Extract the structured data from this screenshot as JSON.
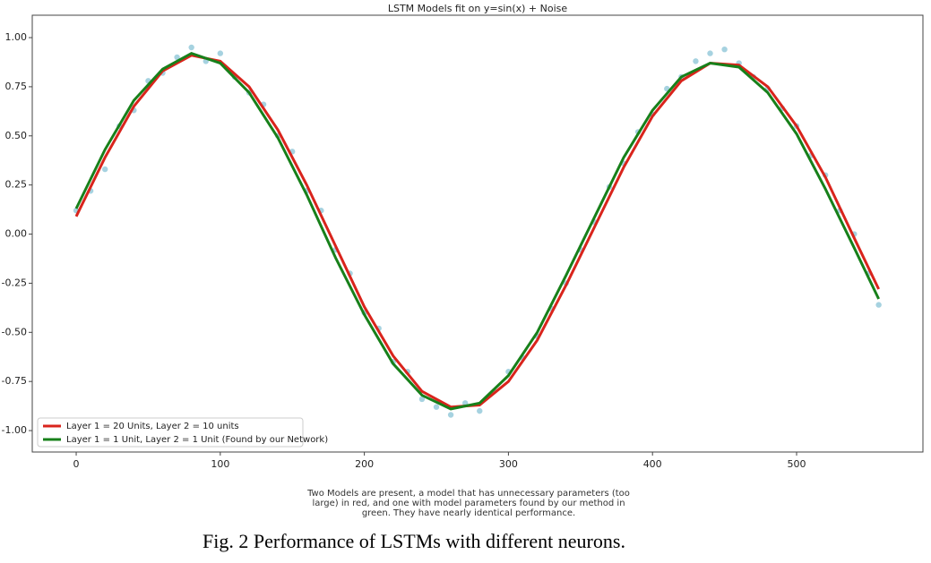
{
  "chart_data": {
    "type": "line",
    "title": "LSTM Models fit on y=sin(x) + Noise",
    "x": [
      0,
      20,
      40,
      60,
      80,
      100,
      120,
      140,
      160,
      180,
      200,
      220,
      240,
      260,
      280,
      300,
      320,
      340,
      360,
      380,
      400,
      420,
      440,
      460,
      480,
      500,
      520,
      540,
      557
    ],
    "series": [
      {
        "name": "Layer 1 = 20 Units, Layer 2 = 10 units",
        "color": "#d9241c",
        "values": [
          0.09,
          0.39,
          0.65,
          0.83,
          0.91,
          0.88,
          0.75,
          0.53,
          0.25,
          -0.06,
          -0.37,
          -0.62,
          -0.8,
          -0.88,
          -0.87,
          -0.75,
          -0.54,
          -0.26,
          0.04,
          0.34,
          0.6,
          0.78,
          0.87,
          0.86,
          0.75,
          0.55,
          0.29,
          -0.02,
          -0.28
        ]
      },
      {
        "name": "Layer 1 = 1 Unit, Layer 2 = 1 Unit (Found by our Network)",
        "color": "#17801a",
        "values": [
          0.13,
          0.43,
          0.68,
          0.84,
          0.92,
          0.87,
          0.72,
          0.49,
          0.2,
          -0.12,
          -0.41,
          -0.66,
          -0.82,
          -0.89,
          -0.86,
          -0.72,
          -0.5,
          -0.21,
          0.09,
          0.39,
          0.63,
          0.8,
          0.87,
          0.85,
          0.72,
          0.51,
          0.23,
          -0.07,
          -0.33
        ]
      }
    ],
    "points": {
      "color": "#a6d2e0",
      "x": [
        0,
        10,
        20,
        30,
        40,
        50,
        60,
        70,
        80,
        90,
        100,
        110,
        120,
        130,
        140,
        150,
        160,
        170,
        180,
        190,
        200,
        210,
        220,
        230,
        240,
        250,
        260,
        270,
        280,
        290,
        300,
        310,
        320,
        330,
        340,
        350,
        360,
        370,
        380,
        390,
        400,
        410,
        420,
        430,
        440,
        450,
        460,
        470,
        480,
        490,
        500,
        510,
        520,
        530,
        540,
        550,
        557
      ],
      "values": [
        0.12,
        0.22,
        0.33,
        0.55,
        0.63,
        0.78,
        0.82,
        0.9,
        0.95,
        0.88,
        0.92,
        0.8,
        0.72,
        0.66,
        0.5,
        0.42,
        0.22,
        0.12,
        -0.08,
        -0.2,
        -0.4,
        -0.48,
        -0.65,
        -0.7,
        -0.84,
        -0.88,
        -0.92,
        -0.86,
        -0.9,
        -0.8,
        -0.7,
        -0.63,
        -0.52,
        -0.38,
        -0.25,
        -0.08,
        0.06,
        0.24,
        0.36,
        0.52,
        0.61,
        0.74,
        0.8,
        0.88,
        0.92,
        0.94,
        0.87,
        0.8,
        0.74,
        0.64,
        0.55,
        0.4,
        0.3,
        0.12,
        0.0,
        -0.2,
        -0.36
      ]
    },
    "xlim": [
      -30.5,
      587.7
    ],
    "ylim": [
      -1.109,
      1.114
    ],
    "xticks": [
      0,
      100,
      200,
      300,
      400,
      500
    ],
    "yticks": [
      {
        "value": 1,
        "label": "1.00"
      },
      {
        "value": 0.75,
        "label": "0.75"
      },
      {
        "value": 0.5,
        "label": "0.50"
      },
      {
        "value": 0.25,
        "label": "0.25"
      },
      {
        "value": 0,
        "label": "0.00"
      },
      {
        "value": -0.25,
        "label": "-0.25"
      },
      {
        "value": -0.5,
        "label": "-0.50"
      },
      {
        "value": -0.75,
        "label": "-0.75"
      },
      {
        "value": -1,
        "label": "-1.00"
      }
    ],
    "legend": "lower left"
  },
  "caption": [
    "Two Models are present, a model that has unnecessary parameters (too",
    "large) in red, and one with model parameters found by our method in",
    "green. They have nearly identical performance."
  ],
  "figure_caption": "Fig. 2 Performance of LSTMs with different neurons."
}
